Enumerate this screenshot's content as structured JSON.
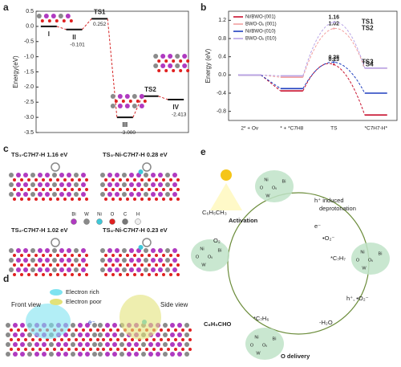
{
  "panel_labels": [
    "a",
    "b",
    "c",
    "d",
    "e"
  ],
  "chart_data": [
    {
      "type": "energy_profile",
      "ylabel": "Energy(eV)",
      "categories": [
        "I",
        "II",
        "TS1",
        "III",
        "TS2",
        "IV"
      ],
      "values": [
        0,
        -0.101,
        0.252,
        -3.0,
        -2.3,
        -2.413
      ],
      "value_labels": [
        null,
        "-0.101",
        "0.252",
        "-3.000",
        null,
        "-2.413"
      ],
      "level_color": "#111111",
      "connector_color": "#d62728",
      "ylim": [
        -3.5,
        0.5
      ],
      "yticks": [
        0.5,
        {
          "value": 0,
          "label": "0.0"
        },
        -0.5,
        {
          "value": -1,
          "label": "-1.0"
        },
        -1.5,
        {
          "value": -2,
          "label": "-2.0"
        },
        -2.5,
        {
          "value": -3,
          "label": "-3.0"
        },
        -3.5
      ]
    },
    {
      "type": "energy_profile_multi",
      "ylabel": "Energy (eV)",
      "categories": [
        "2* + Ov",
        "* + *C7H8",
        "TS",
        "*C7H7-H*"
      ],
      "series": [
        {
          "name": "Ni/BWO-(001)",
          "color": "#c8102e",
          "values": [
            0,
            -0.35,
            0.23,
            -0.88
          ],
          "value_labels": [
            null,
            null,
            "0.23",
            null
          ],
          "ts_label": "TS4"
        },
        {
          "name": "BWO-Oᵥ (001)",
          "color": "#f2a0a0",
          "values": [
            0,
            -0.05,
            1.02,
            0.15
          ],
          "value_labels": [
            null,
            null,
            "1.02",
            null
          ],
          "ts_label": "TS2"
        },
        {
          "name": "Ni/BWO-(010)",
          "color": "#1f3fbf",
          "values": [
            0,
            -0.3,
            0.28,
            -0.4
          ],
          "value_labels": [
            null,
            null,
            "0.28",
            null
          ],
          "ts_label": "TS3"
        },
        {
          "name": "BWO-Oᵥ (010)",
          "color": "#b9a4e6",
          "values": [
            0,
            -0.02,
            1.16,
            0.15
          ],
          "value_labels": [
            null,
            null,
            "1.16",
            null
          ],
          "ts_label": "TS1"
        }
      ],
      "ylim": [
        -1.0,
        1.4
      ],
      "yticks": [
        1.2,
        0.8,
        0.4,
        {
          "value": 0,
          "label": "0.0"
        },
        -0.4,
        -0.8
      ],
      "legend": "upper left"
    }
  ],
  "panel_c": {
    "captions": [
      "TS₁-C7H7-H 1.16 eV",
      "TS₃-Ni-C7H7-H 0.28 eV",
      "TS₂-C7H7-H 1.02 eV",
      "TS₄-Ni-C7H7-H 0.23 eV"
    ],
    "elements": [
      "Bi",
      "W",
      "Ni",
      "O",
      "C",
      "H"
    ],
    "element_colors": [
      "#b03ac0",
      "#8a8a8a",
      "#3fc8d8",
      "#e02020",
      "#777777",
      "#eeeeee"
    ]
  },
  "panel_d": {
    "views": [
      "Front view",
      "Side view"
    ],
    "legend": [
      "Electron rich",
      "Electron poor"
    ],
    "legend_colors": [
      "#7fe3f0",
      "#e3e27a"
    ],
    "electron": "e⁻"
  },
  "panel_e": {
    "reactant": "C₆H₅CH₃",
    "activation": "Activation",
    "deprotonation": [
      "h⁺ induced",
      "deprotonation"
    ],
    "electron": "e⁻",
    "superoxide": "•O₂⁻",
    "oxygen": "O₂",
    "c7h7": "*C₇H₇",
    "oxidants": "h⁺, •O₂⁻",
    "water": "-H₂O",
    "product": "C₆H₅CHO",
    "c7h6": "*C₇H₆",
    "o_delivery": "O delivery",
    "site_labels": [
      "Ni",
      "Oᵥ",
      "Bi",
      "W",
      "O"
    ]
  }
}
